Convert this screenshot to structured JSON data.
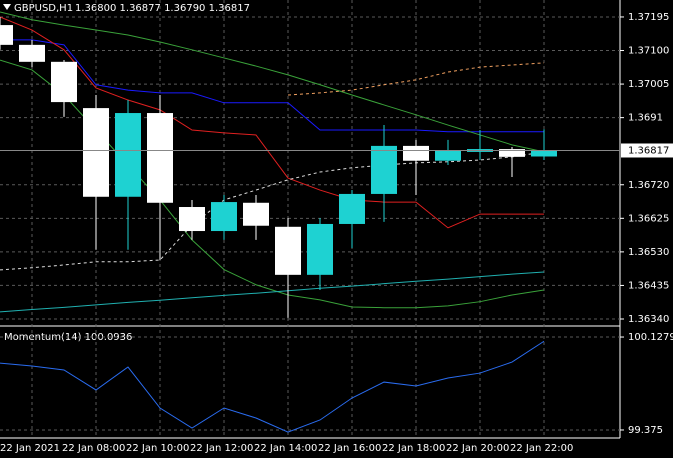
{
  "chart_data": [
    {
      "type": "candlestick",
      "title": "GBPUSD,H1",
      "ohlc_label": "1.36800 1.36877 1.36790 1.36817",
      "categories": [
        "22 Jan 2021",
        null,
        "22 Jan 08:00",
        null,
        "22 Jan 10:00",
        null,
        "22 Jan 12:00",
        null,
        "22 Jan 14:00",
        null,
        "22 Jan 16:00",
        null,
        "22 Jan 18:00",
        null,
        "22 Jan 20:00",
        null,
        "22 Jan 22:00",
        null
      ],
      "open": [
        1.37172,
        1.37116,
        1.37068,
        1.36937,
        1.36686,
        1.36923,
        1.36657,
        1.36589,
        1.36669,
        1.36601,
        1.36465,
        1.36609,
        1.36694,
        1.3683,
        1.36788,
        1.36813,
        1.36821,
        1.368
      ],
      "high": [
        1.37195,
        1.3713,
        1.37073,
        1.36974,
        1.3696,
        1.36974,
        1.36677,
        1.36691,
        1.36691,
        1.36626,
        1.36626,
        1.36705,
        1.36889,
        1.36847,
        1.36847,
        1.36875,
        1.36827,
        1.36877
      ],
      "low": [
        1.37102,
        1.37053,
        1.36912,
        1.36536,
        1.36536,
        1.36507,
        1.36564,
        1.36564,
        1.36564,
        1.36343,
        1.36422,
        1.36541,
        1.36615,
        1.36691,
        1.36776,
        1.3679,
        1.36742,
        1.3679
      ],
      "close": [
        1.37116,
        1.37068,
        1.36954,
        1.36686,
        1.36923,
        1.36669,
        1.36589,
        1.36671,
        1.36604,
        1.36465,
        1.36609,
        1.36694,
        1.3683,
        1.36788,
        1.36816,
        1.36821,
        1.36799,
        1.36817
      ],
      "up_color": "#1ed2d2",
      "down_color": "#ffffff",
      "current_price": 1.36817,
      "series": [
        {
          "color": "#1a1aff",
          "values": [
            1.3713,
            1.3713,
            1.37116,
            1.37003,
            1.36988,
            1.3698,
            1.3698,
            1.36952,
            1.36952,
            1.36952,
            1.36875,
            1.36875,
            1.36875,
            1.36875,
            1.3687,
            1.3687,
            1.3687,
            1.3687
          ]
        },
        {
          "color": "#e02020",
          "values": [
            1.37195,
            1.37158,
            1.37102,
            1.36994,
            1.3696,
            1.36932,
            1.36875,
            1.36867,
            1.36861,
            1.36739,
            1.36705,
            1.36677,
            1.36671,
            1.36671,
            1.36598,
            1.36637,
            1.36637,
            1.36637
          ]
        },
        {
          "color": "#3aa23a",
          "values": [
            1.37209,
            1.37187,
            1.37172,
            1.37158,
            1.37144,
            1.37124,
            1.37102,
            1.37079,
            1.37056,
            1.37031,
            1.37003,
            1.36974,
            1.36946,
            1.36918,
            1.36889,
            1.36861,
            1.36833,
            1.36813
          ]
        },
        {
          "color": "#3aa23a",
          "values": [
            1.37073,
            1.37045,
            1.36974,
            1.36875,
            1.36776,
            1.36677,
            1.36564,
            1.3648,
            1.36437,
            1.36408,
            1.36394,
            1.36374,
            1.36372,
            1.36372,
            1.36377,
            1.36389,
            1.36408,
            1.36422
          ]
        },
        {
          "color": "#20b0b0",
          "values": [
            1.3636,
            1.36367,
            1.36373,
            1.3638,
            1.36387,
            1.36393,
            1.364,
            1.36407,
            1.36413,
            1.3642,
            1.36427,
            1.36433,
            1.3644,
            1.36447,
            1.36453,
            1.3646,
            1.36467,
            1.36473
          ]
        },
        {
          "color": "#f0a060",
          "dash": true,
          "values": [
            null,
            null,
            null,
            null,
            null,
            null,
            null,
            null,
            null,
            1.36974,
            1.3698,
            1.36988,
            1.37003,
            1.37017,
            1.37039,
            1.37053,
            1.37059,
            1.37065
          ]
        },
        {
          "color": "#dddddd",
          "dash": true,
          "values": [
            1.36479,
            1.36485,
            1.36493,
            1.36502,
            1.36502,
            1.36507,
            1.36606,
            1.36677,
            1.36705,
            1.36734,
            1.36756,
            1.36768,
            1.36776,
            1.36782,
            1.36785,
            1.3679,
            1.36799,
            1.36813
          ]
        }
      ],
      "ylim": [
        1.36323,
        1.37243
      ],
      "yticks": [
        1.37195,
        {
          "value": 1.371,
          "label": "1.37100"
        },
        1.37005,
        1.3691,
        {
          "value": 1.3672,
          "label": "1.36720"
        },
        1.36625,
        {
          "value": 1.3653,
          "label": "1.36530"
        },
        1.36435,
        {
          "value": 1.3634,
          "label": "1.36340"
        }
      ],
      "grid": true
    },
    {
      "type": "line",
      "title": "Momentum(14) 100.0936",
      "series": [
        {
          "color": "#2a6cf0",
          "values": [
            99.917,
            99.893,
            99.861,
            99.699,
            99.885,
            99.553,
            99.391,
            99.553,
            99.472,
            99.358,
            99.456,
            99.634,
            99.763,
            99.731,
            99.796,
            99.836,
            99.925,
            100.0936
          ]
        }
      ],
      "ylim": [
        99.31,
        100.201
      ],
      "yticks": [
        100.1279,
        99.375
      ],
      "grid": true
    }
  ]
}
